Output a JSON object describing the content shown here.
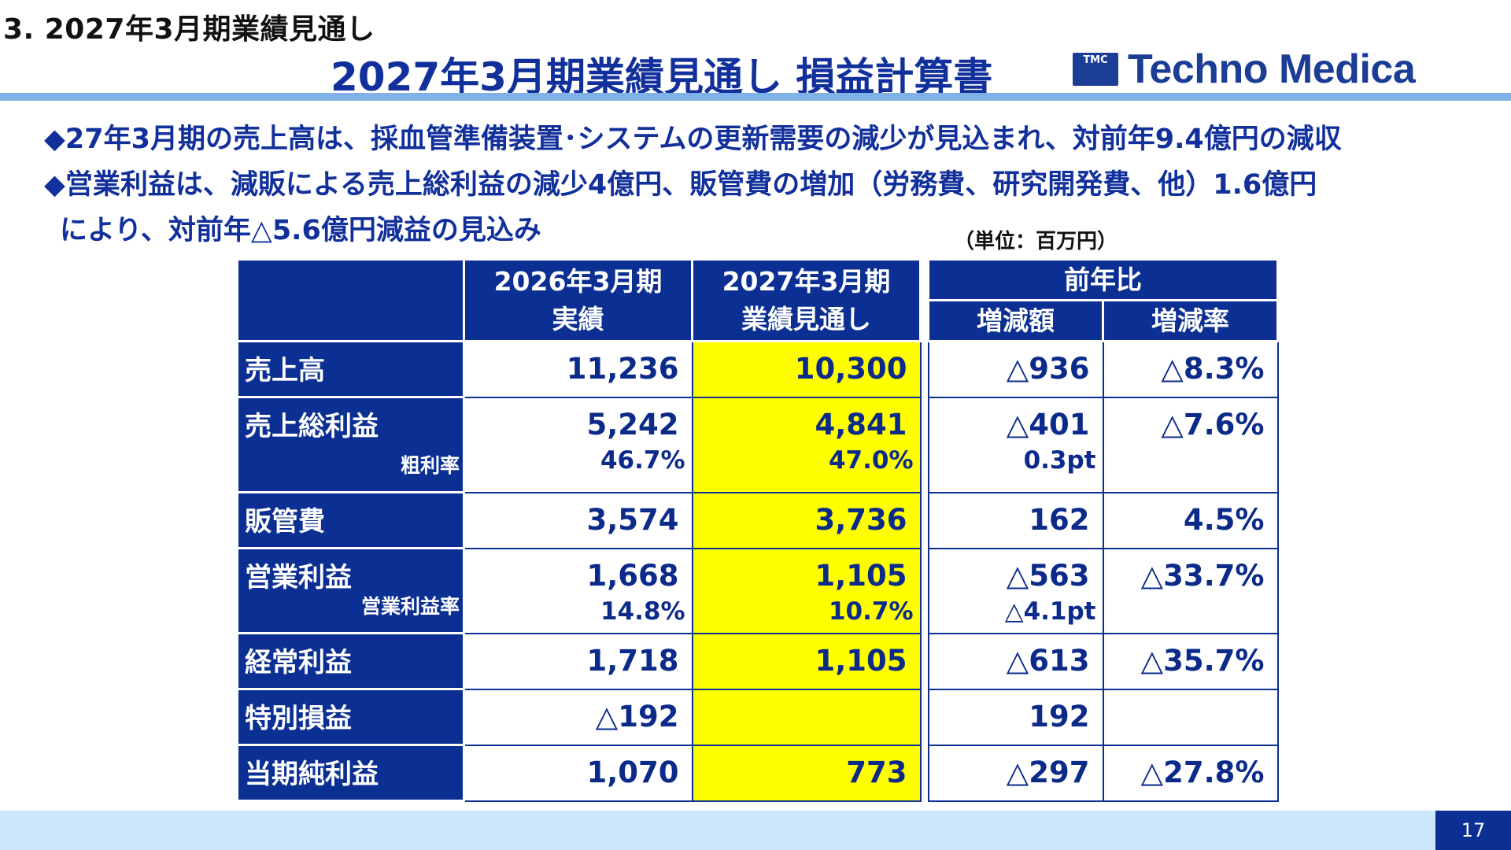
{
  "section_label": "3. 2027年3月期業績見通し",
  "main_title": "2027年3月期業績見通し 損益計算書",
  "logo": {
    "mark": "TMC",
    "text": "Techno Medica"
  },
  "bullets": [
    "◆27年3月期の売上高は、採血管準備装置･システムの更新需要の減少が見込まれ、対前年9.4億円の減収",
    "◆営業利益は、減販による売上総利益の減少4億円、販管費の増加（労務費、研究開発費、他）1.6億円",
    "により、対前年△5.6億円減益の見込み"
  ],
  "unit_note": "（単位：百万円）",
  "table": {
    "headers": {
      "col_actual_l1": "2026年3月期",
      "col_actual_l2": "実績",
      "col_forecast_l1": "2027年3月期",
      "col_forecast_l2": "業績見通し",
      "col_yoy": "前年比",
      "col_change": "増減額",
      "col_rate": "増減率"
    },
    "rows": [
      {
        "label": "売上高",
        "sublabel": "",
        "actual": "11,236",
        "actual_sub": "",
        "forecast": "10,300",
        "forecast_sub": "",
        "change": "△936",
        "change_sub": "",
        "rate": "△8.3%"
      },
      {
        "label": "売上総利益",
        "sublabel": "粗利率",
        "actual": "5,242",
        "actual_sub": "46.7%",
        "forecast": "4,841",
        "forecast_sub": "47.0%",
        "change": "△401",
        "change_sub": "0.3pt",
        "rate": "△7.6%"
      },
      {
        "label": "販管費",
        "sublabel": "",
        "actual": "3,574",
        "actual_sub": "",
        "forecast": "3,736",
        "forecast_sub": "",
        "change": "162",
        "change_sub": "",
        "rate": "4.5%"
      },
      {
        "label": "営業利益",
        "sublabel": "営業利益率",
        "actual": "1,668",
        "actual_sub": "14.8%",
        "forecast": "1,105",
        "forecast_sub": "10.7%",
        "change": "△563",
        "change_sub": "△4.1pt",
        "rate": "△33.7%"
      },
      {
        "label": "経常利益",
        "sublabel": "",
        "actual": "1,718",
        "actual_sub": "",
        "forecast": "1,105",
        "forecast_sub": "",
        "change": "△613",
        "change_sub": "",
        "rate": "△35.7%"
      },
      {
        "label": "特別損益",
        "sublabel": "",
        "actual": "△192",
        "actual_sub": "",
        "forecast": "",
        "forecast_sub": "",
        "change": "192",
        "change_sub": "",
        "rate": ""
      },
      {
        "label": "当期純利益",
        "sublabel": "",
        "actual": "1,070",
        "actual_sub": "",
        "forecast": "773",
        "forecast_sub": "",
        "change": "△297",
        "change_sub": "",
        "rate": "△27.8%"
      }
    ]
  },
  "page_number": "17",
  "colors": {
    "navy": "#0b2f92",
    "forecast_highlight": "#ffff00",
    "title_rule": "#7fb1e6",
    "footer": "#cce9fb"
  }
}
